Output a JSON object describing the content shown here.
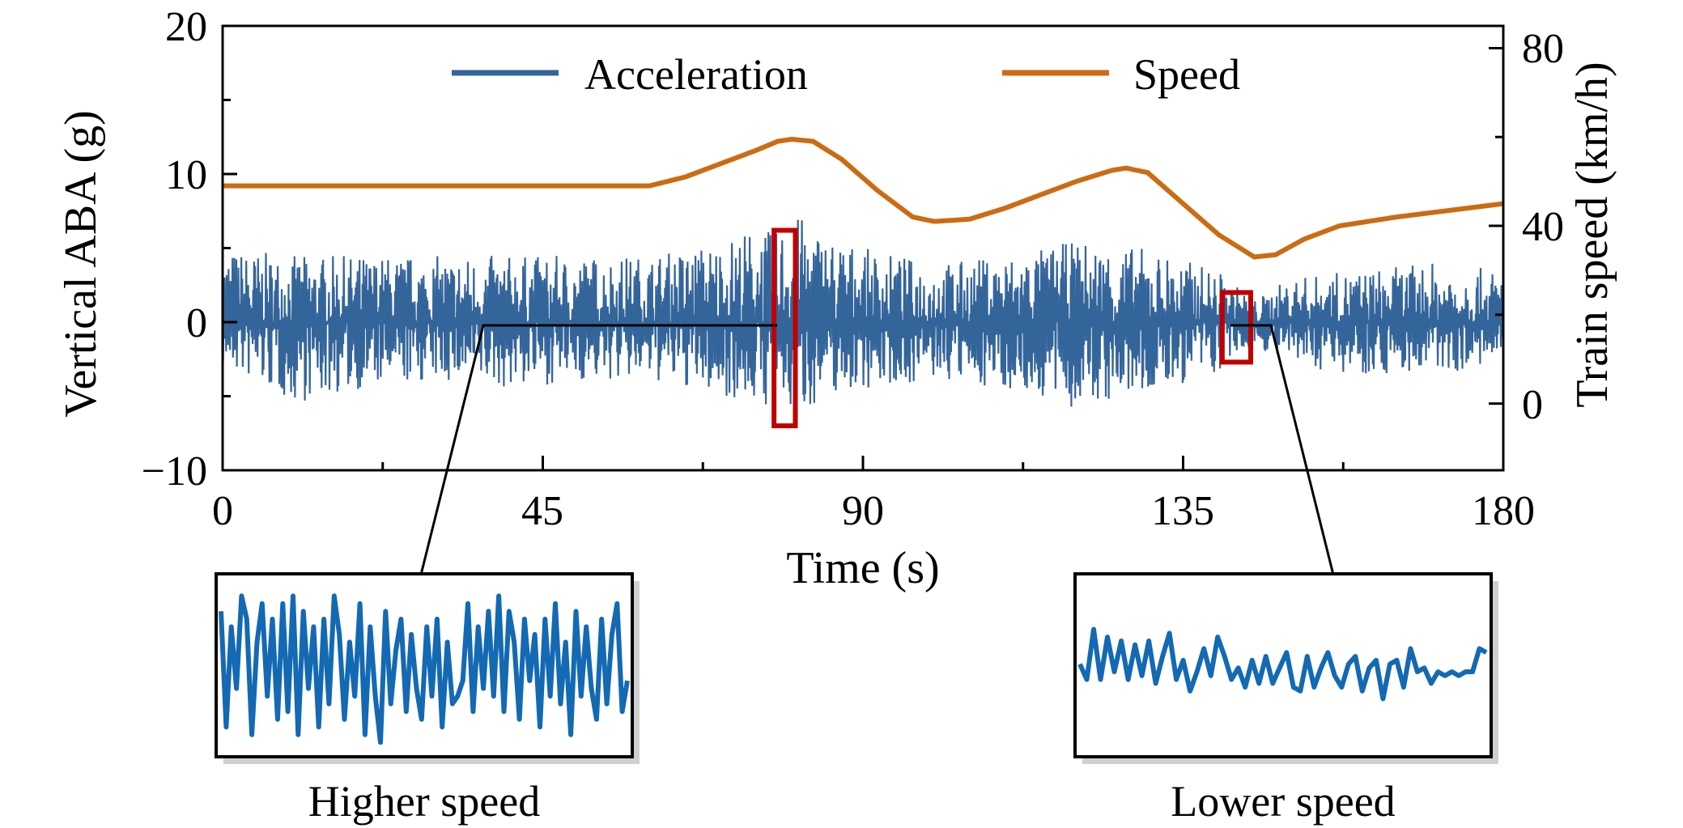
{
  "chart_data": [
    {
      "type": "line",
      "xlabel": "Time (s)",
      "ylabel": "Vertical ABA (g)",
      "y2label": "Train speed (km/h)",
      "xlim": [
        0,
        180
      ],
      "ylim": [
        -10,
        20
      ],
      "y2lim": [
        -15,
        85
      ],
      "x_ticks": [
        "0",
        "45",
        "90",
        "135",
        "180"
      ],
      "y_ticks": [
        "20",
        "10",
        "0",
        "−10"
      ],
      "y2_ticks": [
        "80",
        "40",
        "0"
      ],
      "legend": {
        "placement": "top"
      },
      "grid": false,
      "series": [
        {
          "name": "Acceleration",
          "axis": "left",
          "color": "#34659a",
          "x": [
            0,
            10,
            20,
            30,
            40,
            50,
            60,
            70,
            75,
            77.5,
            80,
            85,
            90,
            100,
            110,
            120,
            130,
            140,
            145,
            150,
            160,
            170,
            180
          ],
          "y_max": [
            5.0,
            4.5,
            4.5,
            4.5,
            4.5,
            4.5,
            4.5,
            5.5,
            6.5,
            6.0,
            7.5,
            6.0,
            5.0,
            4.0,
            4.5,
            5.5,
            5.0,
            3.5,
            1.5,
            3.0,
            3.5,
            4.0,
            3.5
          ],
          "y_min": [
            -3.0,
            -5.5,
            -4.5,
            -4.0,
            -4.5,
            -4.0,
            -4.0,
            -5.0,
            -5.5,
            -6.0,
            -6.5,
            -5.0,
            -4.5,
            -4.0,
            -4.5,
            -6.0,
            -5.0,
            -3.5,
            -1.5,
            -3.0,
            -3.5,
            -3.5,
            -3.0
          ]
        },
        {
          "name": "Speed",
          "axis": "right",
          "color": "#cc6b12",
          "x": [
            0,
            20,
            40,
            50,
            55,
            60,
            65,
            70,
            75,
            78,
            80,
            83,
            87,
            92,
            97,
            100,
            105,
            110,
            115,
            120,
            125,
            127,
            130,
            135,
            140,
            143,
            145,
            148,
            152,
            157,
            165,
            175,
            180
          ],
          "y": [
            49,
            49,
            49,
            49,
            49,
            49,
            51,
            54,
            57,
            59,
            59.5,
            59,
            55,
            48,
            42,
            41,
            41.5,
            44,
            47,
            50,
            52.5,
            53,
            52,
            45,
            38,
            35,
            33,
            33.5,
            37,
            40,
            42,
            44,
            45
          ]
        }
      ],
      "annotations": [
        {
          "label": "highlight",
          "x_range": [
            77.5,
            80.5
          ],
          "y_range": [
            -7,
            6.2
          ],
          "color": "#c00000"
        },
        {
          "label": "highlight",
          "x_range": [
            140.5,
            144.5
          ],
          "y_range": [
            -2.7,
            2.0
          ],
          "color": "#c00000"
        }
      ]
    },
    {
      "type": "line",
      "title": "",
      "caption": "Higher speed",
      "series": [
        {
          "color": "#1469b3",
          "x": [
            0,
            1,
            2,
            3,
            4,
            5,
            6,
            7,
            8,
            9,
            10,
            11,
            12,
            13,
            14,
            15,
            16,
            17,
            18,
            19,
            20,
            21,
            22,
            23,
            24,
            25,
            26,
            27,
            28,
            29,
            30,
            31,
            32,
            33,
            34,
            35,
            36,
            37,
            38,
            39,
            40,
            41,
            42,
            43,
            44,
            45,
            46,
            47,
            48,
            49,
            50,
            51,
            52,
            53,
            54,
            55,
            56,
            57,
            58,
            59,
            60,
            61,
            62,
            63,
            64,
            65,
            66,
            67,
            68,
            69,
            70,
            71,
            72,
            73,
            74,
            75,
            76,
            77,
            78,
            79
          ],
          "y": [
            0.7,
            -0.8,
            0.5,
            -0.3,
            0.9,
            0.6,
            -0.9,
            0.3,
            0.8,
            -0.4,
            0.6,
            -0.7,
            0.8,
            -0.6,
            0.9,
            -0.9,
            0.7,
            -0.3,
            0.5,
            -0.8,
            0.6,
            -0.5,
            0.9,
            0.4,
            -0.7,
            0.3,
            -0.4,
            0.8,
            -0.9,
            0.5,
            -0.4,
            -1.0,
            0.7,
            -0.5,
            0.2,
            0.6,
            -0.6,
            0.4,
            -0.3,
            -0.7,
            0.5,
            -0.4,
            0.6,
            -0.8,
            0.3,
            -0.5,
            -0.4,
            -0.2,
            0.8,
            -0.6,
            0.5,
            -0.3,
            0.7,
            -0.4,
            0.9,
            -0.6,
            0.7,
            0.3,
            -0.7,
            0.6,
            -0.2,
            0.4,
            -0.8,
            0.6,
            -0.4,
            0.8,
            -0.5,
            0.3,
            -0.9,
            0.7,
            -0.4,
            0.5,
            -0.3,
            -0.7,
            0.6,
            -0.5,
            0.4,
            0.8,
            -0.6,
            -0.2
          ]
        }
      ]
    },
    {
      "type": "line",
      "title": "",
      "caption": "Lower speed",
      "series": [
        {
          "color": "#1469b3",
          "x": [
            0,
            1,
            2,
            3,
            4,
            5,
            6,
            7,
            8,
            9,
            10,
            11,
            12,
            13,
            14,
            15,
            16,
            17,
            18,
            19,
            20,
            21,
            22,
            23,
            24,
            25,
            26,
            27,
            28,
            29,
            30,
            31,
            32,
            33,
            34,
            35,
            36,
            37,
            38,
            39,
            40,
            41,
            42,
            43,
            44,
            45,
            46,
            47,
            48,
            49,
            50,
            51,
            52,
            53,
            54,
            55,
            56,
            57,
            58,
            59
          ],
          "y": [
            0.1,
            -0.1,
            0.55,
            -0.1,
            0.45,
            0.0,
            0.4,
            -0.1,
            0.35,
            -0.05,
            0.4,
            -0.15,
            0.2,
            0.5,
            -0.1,
            0.15,
            -0.25,
            0.0,
            0.3,
            -0.05,
            0.45,
            0.2,
            -0.1,
            0.05,
            -0.2,
            0.15,
            -0.15,
            0.2,
            -0.15,
            0.05,
            0.25,
            -0.2,
            -0.25,
            0.2,
            -0.2,
            0.05,
            0.25,
            -0.05,
            -0.2,
            0.1,
            0.2,
            -0.25,
            0.05,
            0.15,
            -0.35,
            0.1,
            0.15,
            -0.2,
            0.3,
            0.0,
            0.05,
            -0.15,
            0.0,
            -0.05,
            0.0,
            -0.05,
            0.0,
            0.0,
            0.3,
            0.25
          ]
        }
      ]
    }
  ]
}
